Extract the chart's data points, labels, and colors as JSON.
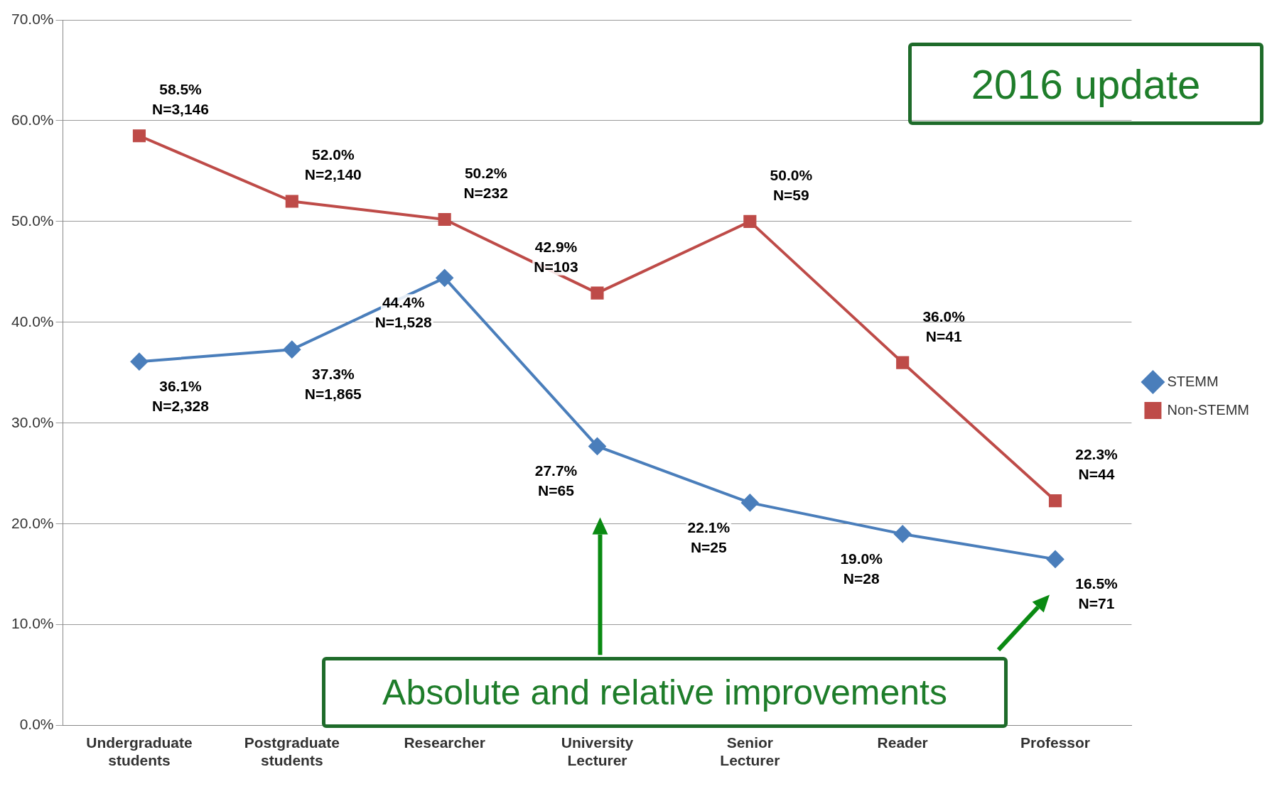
{
  "chart_data": {
    "type": "line",
    "categories": [
      "Undergraduate students",
      "Postgraduate students",
      "Researcher",
      "University Lecturer",
      "Senior Lecturer",
      "Reader",
      "Professor"
    ],
    "series": [
      {
        "name": "STEMM",
        "color": "#4a7ebb",
        "marker": "diamond",
        "values": [
          36.1,
          37.3,
          44.4,
          27.7,
          22.1,
          19.0,
          16.5
        ],
        "value_labels": [
          "36.1%\nN=2,328",
          "37.3%\nN=1,865",
          "44.4%\nN=1,528",
          "27.7%\nN=65",
          "22.1%\nN=25",
          "19.0%\nN=28",
          "16.5%\nN=71"
        ]
      },
      {
        "name": "Non-STEMM",
        "color": "#be4b48",
        "marker": "square",
        "values": [
          58.5,
          52.0,
          50.2,
          42.9,
          50.0,
          36.0,
          22.3
        ],
        "value_labels": [
          "58.5%\nN=3,146",
          "52.0%\nN=2,140",
          "50.2%\nN=232",
          "42.9%\nN=103",
          "50.0%\nN=59",
          "36.0%\nN=41",
          "22.3%\nN=44"
        ]
      }
    ],
    "ylim": [
      0,
      70
    ],
    "yticks": [
      {
        "value": 0,
        "label": "0.0%"
      },
      {
        "value": 10,
        "label": "10.0%"
      },
      {
        "value": 20,
        "label": "20.0%"
      },
      {
        "value": 30,
        "label": "30.0%"
      },
      {
        "value": 40,
        "label": "40.0%"
      },
      {
        "value": 50,
        "label": "50.0%"
      },
      {
        "value": 60,
        "label": "60.0%"
      },
      {
        "value": 70,
        "label": "70.0%"
      }
    ],
    "grid": "y",
    "legend": "right",
    "line_style": "solid",
    "annotations": [
      "2016 update",
      "Absolute and relative improvements"
    ]
  }
}
